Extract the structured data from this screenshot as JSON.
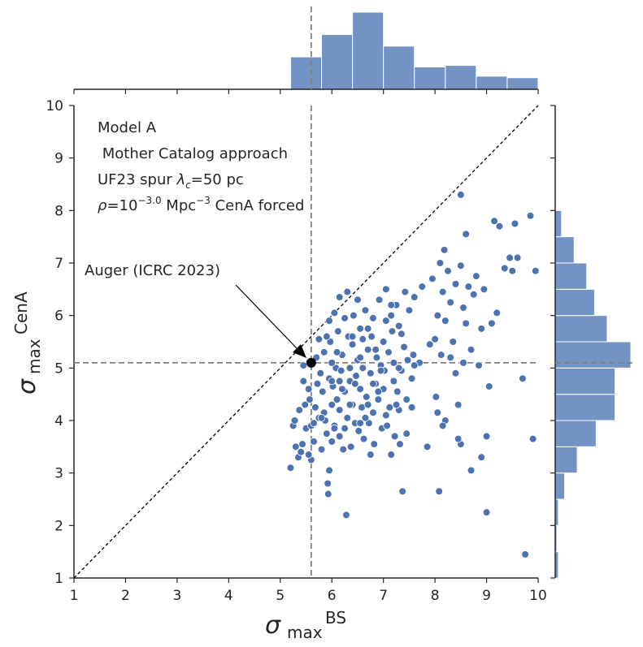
{
  "chart_data": {
    "type": "scatter",
    "xlabel_symbol": "σ",
    "xlabel_sub": "max",
    "xlabel_sup": "BS",
    "ylabel_symbol": "σ",
    "ylabel_sub": "max",
    "ylabel_sup": "CenA",
    "xlim": [
      1,
      10
    ],
    "ylim": [
      1,
      10
    ],
    "xticks": [
      1,
      2,
      3,
      4,
      5,
      6,
      7,
      8,
      9,
      10
    ],
    "yticks": [
      1,
      2,
      3,
      4,
      5,
      6,
      7,
      8,
      9,
      10
    ],
    "grid": false,
    "annotation_lines": {
      "line1": "Model A",
      "line2": " Mother Catalog approach",
      "line3_prefix": "UF23 spur ",
      "line3_symbol": "λ",
      "line3_sub": "c",
      "line3_suffix": "=50 pc",
      "line4_symbol": "ρ",
      "line4_base": "=10",
      "line4_exp": "−3.0",
      "line4_unit": " Mpc",
      "line4_unit_exp": "−3",
      "line4_suffix": " CenA forced"
    },
    "reference_point": {
      "label": "Auger (ICRC 2023)",
      "x": 5.6,
      "y": 5.1
    },
    "reference_lines": {
      "vertical_x": 5.6,
      "horizontal_y": 5.1
    },
    "diagonal": {
      "from": [
        1,
        1
      ],
      "to": [
        10,
        10
      ]
    },
    "colors": {
      "points": "#4c72b0",
      "hist": "#7393c5",
      "ref_line": "#808080",
      "axis": "#262626"
    },
    "top_hist": {
      "bin_edges": [
        5.2,
        5.8,
        6.4,
        7.0,
        7.6,
        8.2,
        8.8,
        9.4,
        10.0
      ],
      "counts": [
        42,
        71,
        100,
        56,
        29,
        31,
        17,
        15
      ]
    },
    "right_hist": {
      "bin_edges": [
        1.0,
        1.5,
        2.0,
        2.5,
        3.0,
        3.5,
        4.0,
        4.5,
        5.0,
        5.5,
        6.0,
        6.5,
        7.0,
        7.5,
        8.0
      ],
      "counts": [
        2,
        1,
        2,
        6,
        14,
        26,
        38,
        38,
        48,
        33,
        25,
        20,
        12,
        4
      ]
    },
    "points": [
      [
        5.2,
        3.1
      ],
      [
        5.25,
        3.9
      ],
      [
        5.28,
        4.0
      ],
      [
        5.3,
        3.5
      ],
      [
        5.35,
        3.3
      ],
      [
        5.37,
        4.2
      ],
      [
        5.4,
        3.4
      ],
      [
        5.43,
        3.55
      ],
      [
        5.45,
        5.05
      ],
      [
        5.48,
        4.3
      ],
      [
        5.5,
        3.85
      ],
      [
        5.55,
        4.6
      ],
      [
        5.57,
        4.4
      ],
      [
        5.6,
        3.9
      ],
      [
        5.6,
        3.25
      ],
      [
        5.65,
        3.6
      ],
      [
        5.68,
        4.25
      ],
      [
        5.7,
        5.2
      ],
      [
        5.72,
        4.7
      ],
      [
        5.75,
        4.05
      ],
      [
        5.78,
        4.9
      ],
      [
        5.8,
        3.45
      ],
      [
        5.82,
        4.55
      ],
      [
        5.85,
        5.3
      ],
      [
        5.87,
        4.0
      ],
      [
        5.9,
        3.75
      ],
      [
        5.92,
        2.8
      ],
      [
        5.93,
        2.6
      ],
      [
        5.95,
        3.05
      ],
      [
        5.95,
        4.8
      ],
      [
        5.97,
        5.5
      ],
      [
        6.0,
        4.3
      ],
      [
        6.0,
        3.6
      ],
      [
        6.02,
        4.65
      ],
      [
        6.05,
        3.9
      ],
      [
        6.08,
        5.0
      ],
      [
        6.1,
        4.4
      ],
      [
        6.12,
        5.7
      ],
      [
        6.15,
        3.7
      ],
      [
        6.15,
        4.2
      ],
      [
        6.18,
        4.95
      ],
      [
        6.2,
        5.25
      ],
      [
        6.22,
        3.45
      ],
      [
        6.25,
        4.55
      ],
      [
        6.25,
        5.95
      ],
      [
        6.28,
        2.2
      ],
      [
        6.3,
        4.05
      ],
      [
        6.32,
        5.6
      ],
      [
        6.35,
        4.75
      ],
      [
        6.37,
        3.5
      ],
      [
        6.4,
        4.3
      ],
      [
        6.4,
        5.45
      ],
      [
        6.42,
        6.0
      ],
      [
        6.45,
        3.95
      ],
      [
        6.47,
        4.85
      ],
      [
        6.5,
        5.15
      ],
      [
        6.52,
        3.8
      ],
      [
        6.55,
        4.6
      ],
      [
        6.55,
        5.75
      ],
      [
        6.58,
        4.25
      ],
      [
        6.6,
        5.0
      ],
      [
        6.62,
        3.65
      ],
      [
        6.65,
        6.1
      ],
      [
        6.67,
        4.45
      ],
      [
        6.7,
        5.35
      ],
      [
        6.72,
        3.95
      ],
      [
        6.75,
        4.9
      ],
      [
        6.77,
        5.6
      ],
      [
        6.8,
        4.15
      ],
      [
        6.8,
        5.95
      ],
      [
        6.82,
        3.55
      ],
      [
        6.85,
        4.7
      ],
      [
        6.87,
        5.2
      ],
      [
        6.9,
        4.4
      ],
      [
        6.92,
        6.3
      ],
      [
        6.95,
        5.05
      ],
      [
        6.97,
        3.85
      ],
      [
        7.0,
        4.6
      ],
      [
        7.0,
        5.5
      ],
      [
        7.02,
        4.95
      ],
      [
        7.05,
        6.5
      ],
      [
        7.07,
        3.9
      ],
      [
        7.1,
        5.3
      ],
      [
        7.12,
        4.25
      ],
      [
        7.15,
        6.0
      ],
      [
        7.17,
        5.7
      ],
      [
        7.2,
        4.75
      ],
      [
        7.2,
        5.1
      ],
      [
        7.22,
        3.7
      ],
      [
        7.25,
        6.2
      ],
      [
        7.27,
        4.55
      ],
      [
        7.3,
        5.8
      ],
      [
        7.32,
        3.55
      ],
      [
        7.35,
        4.95
      ],
      [
        7.37,
        2.65
      ],
      [
        7.4,
        5.4
      ],
      [
        7.42,
        6.45
      ],
      [
        7.45,
        4.4
      ],
      [
        7.47,
        5.15
      ],
      [
        7.5,
        6.1
      ],
      [
        7.55,
        4.8
      ],
      [
        7.58,
        5.25
      ],
      [
        7.6,
        6.35
      ],
      [
        7.7,
        5.1
      ],
      [
        7.75,
        6.55
      ],
      [
        7.85,
        3.5
      ],
      [
        7.9,
        5.45
      ],
      [
        7.95,
        6.7
      ],
      [
        8.0,
        5.55
      ],
      [
        8.02,
        4.45
      ],
      [
        8.05,
        6.0
      ],
      [
        8.05,
        4.15
      ],
      [
        8.08,
        2.65
      ],
      [
        8.1,
        7.0
      ],
      [
        8.12,
        5.25
      ],
      [
        8.15,
        6.45
      ],
      [
        8.18,
        7.25
      ],
      [
        8.2,
        4.0
      ],
      [
        8.2,
        5.9
      ],
      [
        8.25,
        6.85
      ],
      [
        8.3,
        6.25
      ],
      [
        8.35,
        5.5
      ],
      [
        8.4,
        6.6
      ],
      [
        8.45,
        4.3
      ],
      [
        8.5,
        3.55
      ],
      [
        8.5,
        6.95
      ],
      [
        8.55,
        6.15
      ],
      [
        8.6,
        7.55
      ],
      [
        8.65,
        6.55
      ],
      [
        8.7,
        5.35
      ],
      [
        8.7,
        3.05
      ],
      [
        8.75,
        6.4
      ],
      [
        8.8,
        6.75
      ],
      [
        8.85,
        5.05
      ],
      [
        8.9,
        3.3
      ],
      [
        8.9,
        5.75
      ],
      [
        8.95,
        6.5
      ],
      [
        9.0,
        3.7
      ],
      [
        9.0,
        2.25
      ],
      [
        9.05,
        4.65
      ],
      [
        9.1,
        5.85
      ],
      [
        9.15,
        7.8
      ],
      [
        9.2,
        6.05
      ],
      [
        9.25,
        7.7
      ],
      [
        9.35,
        6.9
      ],
      [
        9.45,
        7.1
      ],
      [
        9.5,
        6.85
      ],
      [
        9.55,
        7.75
      ],
      [
        9.6,
        7.1
      ],
      [
        9.7,
        4.8
      ],
      [
        9.75,
        1.45
      ],
      [
        9.85,
        7.9
      ],
      [
        9.9,
        3.65
      ],
      [
        9.95,
        6.85
      ],
      [
        8.5,
        8.3
      ],
      [
        8.4,
        4.9
      ],
      [
        8.45,
        3.65
      ],
      [
        8.6,
        5.85
      ],
      [
        8.3,
        5.2
      ],
      [
        7.35,
        5.65
      ],
      [
        7.3,
        4.2
      ],
      [
        6.05,
        6.05
      ],
      [
        6.1,
        5.3
      ],
      [
        5.95,
        5.9
      ],
      [
        5.9,
        5.6
      ],
      [
        6.35,
        5.0
      ],
      [
        6.65,
        4.05
      ],
      [
        6.45,
        4.7
      ],
      [
        6.75,
        3.35
      ],
      [
        7.05,
        4.1
      ],
      [
        7.15,
        3.35
      ],
      [
        6.25,
        3.85
      ],
      [
        6.55,
        3.95
      ],
      [
        6.9,
        4.55
      ],
      [
        7.25,
        4.3
      ],
      [
        6.0,
        5.1
      ],
      [
        5.85,
        4.15
      ],
      [
        5.75,
        5.55
      ],
      [
        6.15,
        6.35
      ],
      [
        6.5,
        6.3
      ],
      [
        6.3,
        6.45
      ],
      [
        7.45,
        3.75
      ],
      [
        7.55,
        4.25
      ],
      [
        6.95,
        4.95
      ],
      [
        7.05,
        5.9
      ],
      [
        6.85,
        5.35
      ],
      [
        6.6,
        5.55
      ],
      [
        6.4,
        5.6
      ],
      [
        5.65,
        3.95
      ],
      [
        5.55,
        3.35
      ],
      [
        6.15,
        4.75
      ],
      [
        6.35,
        4.3
      ],
      [
        7.3,
        5.0
      ],
      [
        7.6,
        5.05
      ],
      [
        6.7,
        4.3
      ],
      [
        6.55,
        5.2
      ],
      [
        6.8,
        4.7
      ],
      [
        5.45,
        4.75
      ],
      [
        5.8,
        4.05
      ],
      [
        6.05,
        3.85
      ],
      [
        6.2,
        4.6
      ],
      [
        6.7,
        5.75
      ],
      [
        7.15,
        6.2
      ],
      [
        6.0,
        4.75
      ],
      [
        8.55,
        5.1
      ],
      [
        8.15,
        3.9
      ]
    ]
  }
}
